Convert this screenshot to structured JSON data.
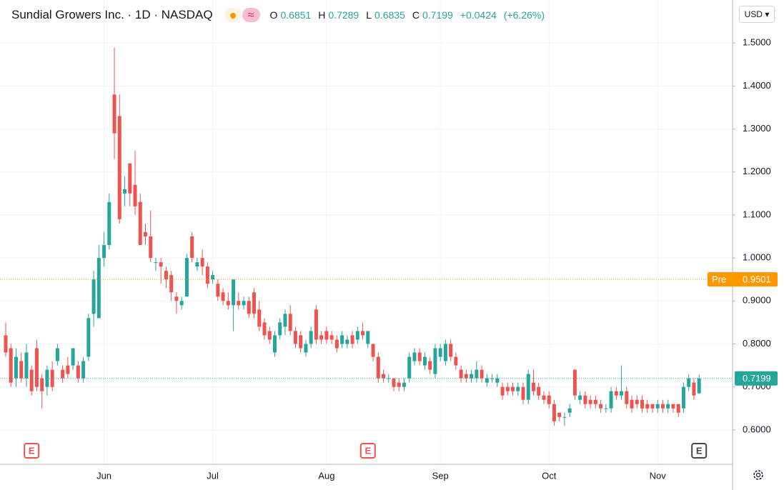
{
  "chart_data": {
    "type": "candlestick",
    "header": {
      "title": "Sundial Growers Inc.",
      "interval": "1D",
      "exchange": "NASDAQ",
      "open_label": "O",
      "open": "0.6851",
      "high_label": "H",
      "high": "0.7289",
      "low_label": "L",
      "low": "0.6835",
      "close_label": "C",
      "close": "0.7199",
      "change": "+0.0424",
      "change_pct": "(+6.26%)"
    },
    "currency": "USD",
    "categories": [
      null,
      null,
      null,
      null,
      null,
      null,
      null,
      null,
      null,
      null,
      null,
      null,
      null,
      null,
      null,
      null,
      null,
      null,
      null,
      "Jun",
      null,
      null,
      null,
      null,
      null,
      null,
      null,
      null,
      null,
      null,
      null,
      null,
      null,
      null,
      null,
      null,
      null,
      null,
      null,
      null,
      "Jul",
      null,
      null,
      null,
      null,
      null,
      null,
      null,
      null,
      null,
      null,
      null,
      null,
      null,
      null,
      null,
      null,
      null,
      null,
      null,
      null,
      null,
      "Aug",
      null,
      null,
      null,
      null,
      null,
      null,
      null,
      null,
      null,
      null,
      null,
      null,
      null,
      null,
      null,
      null,
      null,
      null,
      null,
      null,
      null,
      "Sep",
      null,
      null,
      null,
      null,
      null,
      null,
      null,
      null,
      null,
      null,
      null,
      null,
      null,
      null,
      null,
      null,
      null,
      null,
      null,
      null,
      "Oct",
      null,
      null,
      null,
      null,
      null,
      null,
      null,
      null,
      null,
      null,
      null,
      null,
      null,
      null,
      null,
      null,
      null,
      null,
      null,
      null,
      "Nov",
      null,
      null,
      null,
      null,
      null,
      null,
      null,
      null
    ],
    "open": [
      0.82,
      0.79,
      0.72,
      0.76,
      0.72,
      0.74,
      0.79,
      0.72,
      0.7,
      0.74,
      0.76,
      0.74,
      0.75,
      0.75,
      0.75,
      0.72,
      0.77,
      0.87,
      0.86,
      1.0,
      1.03,
      1.38,
      1.33,
      1.15,
      1.22,
      1.17,
      1.13,
      1.06,
      1.05,
      0.99,
      0.99,
      0.97,
      0.96,
      0.91,
      0.89,
      0.91,
      1.05,
      0.98,
      1.0,
      0.98,
      0.95,
      0.94,
      0.92,
      0.9,
      0.89,
      0.9,
      0.89,
      0.9,
      0.92,
      0.88,
      0.85,
      0.83,
      0.78,
      0.82,
      0.84,
      0.87,
      0.83,
      0.82,
      0.78,
      0.8,
      0.88,
      0.82,
      0.83,
      0.82,
      0.81,
      0.8,
      0.8,
      0.82,
      0.81,
      0.83,
      0.8,
      0.8,
      0.77,
      0.73,
      0.72,
      0.72,
      0.71,
      0.7,
      0.72,
      0.76,
      0.78,
      0.75,
      0.76,
      0.73,
      0.77,
      0.76,
      0.8,
      0.77,
      0.74,
      0.73,
      0.72,
      0.72,
      0.74,
      0.71,
      0.72,
      0.71,
      0.7,
      0.7,
      0.7,
      0.69,
      0.7,
      0.67,
      0.71,
      0.7,
      0.68,
      0.68,
      0.66,
      0.64,
      0.63,
      0.64,
      0.74,
      0.67,
      0.68,
      0.67,
      0.67,
      0.66,
      0.65,
      0.65,
      0.69,
      0.68,
      0.69,
      0.67,
      0.67,
      0.67,
      0.66,
      0.66,
      0.65,
      0.66,
      0.65,
      0.66,
      0.66,
      0.65,
      0.7,
      0.71,
      0.6851
    ],
    "high": [
      0.85,
      0.8,
      0.79,
      0.78,
      0.8,
      0.75,
      0.81,
      0.73,
      0.75,
      0.76,
      0.8,
      0.75,
      0.77,
      0.79,
      0.76,
      0.77,
      0.87,
      0.97,
      1.03,
      1.06,
      1.15,
      1.49,
      1.38,
      1.19,
      1.22,
      1.25,
      1.15,
      1.08,
      1.11,
      1.0,
      1.0,
      0.98,
      0.97,
      0.92,
      0.91,
      1.01,
      1.06,
      1.0,
      1.02,
      0.99,
      0.97,
      0.95,
      0.93,
      0.92,
      0.95,
      0.92,
      0.91,
      0.91,
      0.93,
      0.9,
      0.86,
      0.84,
      0.83,
      0.86,
      0.88,
      0.89,
      0.84,
      0.83,
      0.81,
      0.84,
      0.89,
      0.83,
      0.84,
      0.83,
      0.82,
      0.83,
      0.82,
      0.83,
      0.84,
      0.85,
      0.83,
      0.8,
      0.78,
      0.74,
      0.73,
      0.72,
      0.72,
      0.72,
      0.78,
      0.79,
      0.79,
      0.78,
      0.77,
      0.8,
      0.8,
      0.81,
      0.81,
      0.78,
      0.75,
      0.74,
      0.74,
      0.76,
      0.75,
      0.73,
      0.73,
      0.73,
      0.71,
      0.71,
      0.71,
      0.71,
      0.71,
      0.74,
      0.74,
      0.71,
      0.69,
      0.69,
      0.67,
      0.64,
      0.64,
      0.66,
      0.74,
      0.69,
      0.69,
      0.68,
      0.68,
      0.67,
      0.66,
      0.7,
      0.7,
      0.75,
      0.7,
      0.68,
      0.68,
      0.68,
      0.67,
      0.66,
      0.67,
      0.67,
      0.67,
      0.66,
      0.66,
      0.71,
      0.73,
      0.72,
      0.7289
    ],
    "low": [
      0.77,
      0.7,
      0.7,
      0.71,
      0.7,
      0.68,
      0.69,
      0.65,
      0.68,
      0.69,
      0.75,
      0.71,
      0.72,
      0.74,
      0.71,
      0.71,
      0.76,
      0.84,
      0.86,
      0.98,
      1.02,
      1.23,
      1.08,
      1.12,
      1.12,
      1.1,
      1.03,
      1.03,
      0.99,
      0.97,
      0.94,
      0.93,
      0.9,
      0.87,
      0.88,
      0.91,
      0.99,
      0.97,
      0.96,
      0.93,
      0.94,
      0.9,
      0.89,
      0.88,
      0.83,
      0.88,
      0.88,
      0.86,
      0.86,
      0.83,
      0.81,
      0.8,
      0.77,
      0.81,
      0.82,
      0.82,
      0.79,
      0.78,
      0.77,
      0.79,
      0.8,
      0.8,
      0.8,
      0.8,
      0.78,
      0.79,
      0.79,
      0.79,
      0.8,
      0.81,
      0.79,
      0.76,
      0.71,
      0.71,
      0.71,
      0.69,
      0.69,
      0.69,
      0.71,
      0.75,
      0.75,
      0.74,
      0.73,
      0.72,
      0.76,
      0.75,
      0.76,
      0.74,
      0.71,
      0.71,
      0.71,
      0.71,
      0.71,
      0.7,
      0.71,
      0.7,
      0.67,
      0.68,
      0.68,
      0.68,
      0.66,
      0.66,
      0.68,
      0.67,
      0.66,
      0.65,
      0.61,
      0.62,
      0.61,
      0.63,
      0.67,
      0.66,
      0.65,
      0.65,
      0.65,
      0.64,
      0.64,
      0.64,
      0.67,
      0.67,
      0.65,
      0.64,
      0.65,
      0.64,
      0.64,
      0.64,
      0.64,
      0.64,
      0.64,
      0.64,
      0.63,
      0.64,
      0.69,
      0.67,
      0.6835
    ],
    "close": [
      0.78,
      0.71,
      0.77,
      0.72,
      0.78,
      0.69,
      0.7,
      0.69,
      0.74,
      0.7,
      0.79,
      0.72,
      0.73,
      0.79,
      0.72,
      0.76,
      0.86,
      0.95,
      1.0,
      1.03,
      1.13,
      1.29,
      1.09,
      1.16,
      1.15,
      1.12,
      1.03,
      1.05,
      1.0,
      0.99,
      0.98,
      0.95,
      0.92,
      0.9,
      0.9,
      1.0,
      1.0,
      0.99,
      0.98,
      0.94,
      0.96,
      0.91,
      0.9,
      0.89,
      0.95,
      0.89,
      0.9,
      0.87,
      0.87,
      0.84,
      0.82,
      0.81,
      0.82,
      0.85,
      0.87,
      0.83,
      0.8,
      0.79,
      0.8,
      0.83,
      0.81,
      0.81,
      0.81,
      0.81,
      0.79,
      0.82,
      0.81,
      0.8,
      0.83,
      0.82,
      0.83,
      0.77,
      0.72,
      0.72,
      0.72,
      0.7,
      0.7,
      0.71,
      0.77,
      0.78,
      0.76,
      0.77,
      0.74,
      0.79,
      0.79,
      0.8,
      0.77,
      0.75,
      0.72,
      0.72,
      0.73,
      0.74,
      0.72,
      0.72,
      0.72,
      0.72,
      0.68,
      0.69,
      0.69,
      0.7,
      0.67,
      0.73,
      0.69,
      0.68,
      0.67,
      0.66,
      0.62,
      0.63,
      0.63,
      0.65,
      0.68,
      0.68,
      0.66,
      0.66,
      0.66,
      0.65,
      0.65,
      0.69,
      0.68,
      0.69,
      0.66,
      0.65,
      0.66,
      0.65,
      0.65,
      0.65,
      0.66,
      0.65,
      0.66,
      0.65,
      0.64,
      0.7,
      0.72,
      0.68,
      0.7199
    ],
    "up_color": "#26a69a",
    "down_color": "#ef5350",
    "ylim": [
      0.52,
      1.6
    ],
    "yticks": [
      {
        "value": 0.6,
        "label": "0.6000"
      },
      {
        "value": 0.7,
        "label": "0.7000"
      },
      {
        "value": 0.8,
        "label": "0.8000"
      },
      {
        "value": 0.9,
        "label": "0.9000"
      },
      {
        "value": 1.0,
        "label": "1.0000"
      },
      {
        "value": 1.1,
        "label": "1.1000"
      },
      {
        "value": 1.2,
        "label": "1.2000"
      },
      {
        "value": 1.3,
        "label": "1.3000"
      },
      {
        "value": 1.4,
        "label": "1.4000"
      },
      {
        "value": 1.5,
        "label": "1.5000"
      }
    ],
    "grid": true,
    "pre_market": {
      "label": "Pre",
      "value": 0.9501,
      "color": "#ff9800"
    },
    "events": [
      {
        "label": "E",
        "category_index": 5,
        "color": "#ef5350"
      },
      {
        "label": "E",
        "category_index": 70,
        "color": "#ef5350"
      },
      {
        "label": "E",
        "category_index": 134,
        "color": "#434651"
      }
    ]
  }
}
